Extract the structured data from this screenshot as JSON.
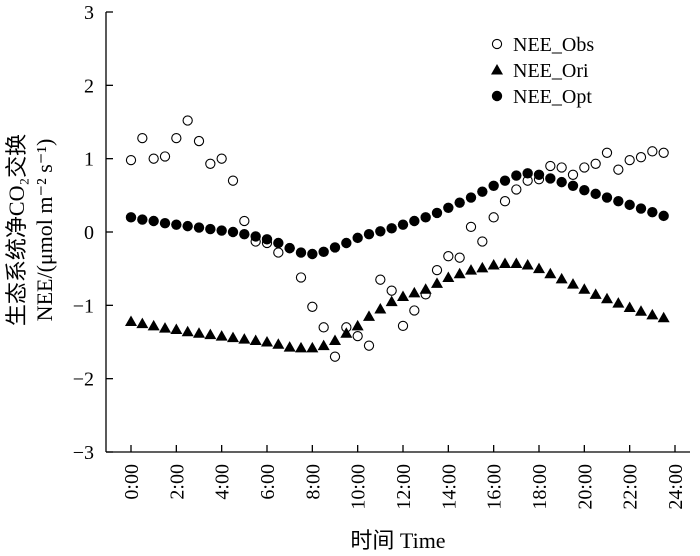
{
  "chart_data": {
    "type": "scatter",
    "xlabel": "时间 Time",
    "ylabel_line1": "生态系统净CO₂交换",
    "ylabel_line2": "NEE/(μmol m⁻² s⁻¹)",
    "ylim": [
      -3,
      3
    ],
    "yticks": [
      "3",
      "2",
      "1",
      "0",
      "−1",
      "−2",
      "−3"
    ],
    "xlim_hours": [
      0,
      24
    ],
    "xticks": [
      "0:00",
      "2:00",
      "4:00",
      "6:00",
      "8:00",
      "10:00",
      "12:00",
      "14:00",
      "16:00",
      "18:00",
      "20:00",
      "22:00",
      "24:00"
    ],
    "legend_position": "top-right",
    "x_hours": [
      0,
      0.5,
      1,
      1.5,
      2,
      2.5,
      3,
      3.5,
      4,
      4.5,
      5,
      5.5,
      6,
      6.5,
      7,
      7.5,
      8,
      8.5,
      9,
      9.5,
      10,
      10.5,
      11,
      11.5,
      12,
      12.5,
      13,
      13.5,
      14,
      14.5,
      15,
      15.5,
      16,
      16.5,
      17,
      17.5,
      18,
      18.5,
      19,
      19.5,
      20,
      20.5,
      21,
      21.5,
      22,
      22.5,
      23,
      23.5
    ],
    "series": [
      {
        "name": "NEE_Obs",
        "marker": "open-circle",
        "values": [
          0.98,
          1.28,
          1.0,
          1.03,
          1.28,
          1.52,
          1.24,
          0.93,
          1.0,
          0.7,
          0.15,
          -0.13,
          -0.15,
          -0.28,
          -0.22,
          -0.62,
          -1.02,
          -1.3,
          -1.7,
          -1.3,
          -1.42,
          -1.55,
          -0.65,
          -0.8,
          -1.28,
          -1.07,
          -0.85,
          -0.52,
          -0.33,
          -0.35,
          0.07,
          -0.13,
          0.2,
          0.42,
          0.58,
          0.7,
          0.72,
          0.9,
          0.88,
          0.78,
          0.88,
          0.93,
          1.08,
          0.85,
          0.98,
          1.02,
          1.1,
          1.08
        ]
      },
      {
        "name": "NEE_Ori",
        "marker": "filled-triangle",
        "values": [
          -1.22,
          -1.25,
          -1.28,
          -1.31,
          -1.33,
          -1.36,
          -1.38,
          -1.4,
          -1.42,
          -1.44,
          -1.46,
          -1.48,
          -1.5,
          -1.53,
          -1.57,
          -1.58,
          -1.58,
          -1.55,
          -1.48,
          -1.38,
          -1.28,
          -1.15,
          -1.05,
          -0.95,
          -0.88,
          -0.83,
          -0.78,
          -0.7,
          -0.62,
          -0.57,
          -0.52,
          -0.49,
          -0.45,
          -0.43,
          -0.43,
          -0.45,
          -0.5,
          -0.57,
          -0.64,
          -0.71,
          -0.78,
          -0.85,
          -0.91,
          -0.97,
          -1.03,
          -1.08,
          -1.13,
          -1.17
        ]
      },
      {
        "name": "NEE_Opt",
        "marker": "filled-circle",
        "values": [
          0.2,
          0.17,
          0.15,
          0.12,
          0.1,
          0.08,
          0.06,
          0.04,
          0.02,
          0.0,
          -0.03,
          -0.06,
          -0.1,
          -0.15,
          -0.22,
          -0.28,
          -0.3,
          -0.27,
          -0.21,
          -0.15,
          -0.08,
          -0.03,
          0.01,
          0.05,
          0.1,
          0.15,
          0.2,
          0.26,
          0.33,
          0.4,
          0.47,
          0.55,
          0.63,
          0.7,
          0.77,
          0.8,
          0.78,
          0.73,
          0.68,
          0.63,
          0.57,
          0.52,
          0.47,
          0.42,
          0.37,
          0.32,
          0.27,
          0.22
        ]
      }
    ]
  }
}
